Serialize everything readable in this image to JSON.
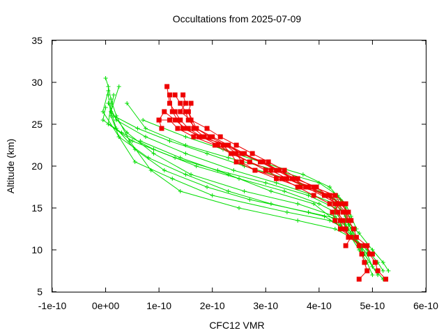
{
  "chart_data": {
    "type": "scatter",
    "title": "Occultations from 2025-07-09",
    "xlabel": "CFC12 VMR",
    "ylabel": "Altitude (km)",
    "xlim": [
      -1e-10,
      6e-10
    ],
    "ylim": [
      5,
      35
    ],
    "grid": false,
    "legend": "none",
    "x_ticks": [
      {
        "value": -1e-10,
        "label": "-1e-10"
      },
      {
        "value": 0,
        "label": "0e+00"
      },
      {
        "value": 1e-10,
        "label": "1e-10"
      },
      {
        "value": 2e-10,
        "label": "2e-10"
      },
      {
        "value": 3e-10,
        "label": "3e-10"
      },
      {
        "value": 4e-10,
        "label": "4e-10"
      },
      {
        "value": 5e-10,
        "label": "5e-10"
      },
      {
        "value": 6e-10,
        "label": "6e-10"
      }
    ],
    "y_ticks": [
      {
        "value": 5,
        "label": "5"
      },
      {
        "value": 10,
        "label": "10"
      },
      {
        "value": 15,
        "label": "15"
      },
      {
        "value": 20,
        "label": "20"
      },
      {
        "value": 25,
        "label": "25"
      },
      {
        "value": 30,
        "label": "30"
      },
      {
        "value": 35,
        "label": "35"
      }
    ],
    "series": [
      {
        "style": "line-plus",
        "color": "#00dd00",
        "x": [
          5.2e-10,
          5.1e-10,
          4.9e-10,
          4.6e-10,
          4.3e-10,
          3.6e-10,
          2.5e-10,
          1.4e-10,
          8.5e-11,
          4.5e-11,
          2e-11,
          1e-11,
          5e-12,
          0.0
        ],
        "y": [
          7.5,
          8.5,
          10,
          11.5,
          12.5,
          13.5,
          15,
          17,
          19.5,
          23,
          26,
          28,
          29.5,
          30.5
        ]
      },
      {
        "style": "line-plus",
        "color": "#00dd00",
        "x": [
          5e-10,
          4.9e-10,
          4.7e-10,
          4.5e-10,
          4.2e-10,
          3.4e-10,
          2e-10,
          1.25e-10,
          5.5e-11,
          2.5e-11,
          1e-11,
          5e-12
        ],
        "y": [
          8,
          9.5,
          11,
          12.5,
          13.5,
          14.5,
          16.5,
          18.5,
          20.5,
          23.5,
          26,
          28.5
        ]
      },
      {
        "style": "line-plus",
        "color": "#00dd00",
        "x": [
          5.3e-10,
          5.2e-10,
          5e-10,
          4.75e-10,
          4.5e-10,
          3.8e-10,
          2.7e-10,
          1.9e-10,
          1.1e-10,
          5.5e-11,
          2e-11,
          1e-11,
          1.5e-11
        ],
        "y": [
          7.5,
          8.5,
          10,
          12,
          13.5,
          14.5,
          16,
          17.5,
          19.5,
          22,
          24.5,
          26.5,
          28.5
        ]
      },
      {
        "style": "line-plus",
        "color": "#00dd00",
        "x": [
          5.1e-10,
          5e-10,
          4.85e-10,
          4.7e-10,
          4.5e-10,
          4.1e-10,
          3.1e-10,
          2.3e-10,
          1.5e-10,
          8e-11,
          2.5e-11,
          -5e-12,
          5e-12
        ],
        "y": [
          7,
          8,
          9.5,
          11,
          12.5,
          14,
          15.5,
          17,
          19,
          21,
          23.5,
          26.5,
          29
        ]
      },
      {
        "style": "line-plus",
        "color": "#00dd00",
        "x": [
          5.2e-10,
          5e-10,
          4.85e-10,
          4.7e-10,
          4.55e-10,
          4.3e-10,
          3.6e-10,
          2.6e-10,
          1.6e-10,
          9e-11,
          4e-11,
          1e-11,
          2.5e-11
        ],
        "y": [
          6.5,
          8,
          9.5,
          11,
          12.5,
          14,
          15.5,
          17,
          19,
          21.5,
          24,
          26.5,
          29.5
        ]
      },
      {
        "style": "line-plus",
        "color": "#00dd00",
        "x": [
          4.9e-10,
          4.7e-10,
          4.6e-10,
          4.5e-10,
          4.3e-10,
          3.9e-10,
          3.2e-10,
          2.4e-10,
          1.5e-10,
          7.5e-11,
          2e-11,
          5e-12
        ],
        "y": [
          9.5,
          11,
          12.5,
          14,
          15.5,
          16.5,
          18,
          19.5,
          21.5,
          23.5,
          25.5,
          27.5
        ]
      },
      {
        "style": "line-plus",
        "color": "#00dd00",
        "x": [
          4.8e-10,
          4.65e-10,
          4.5e-10,
          4.3e-10,
          4e-10,
          3.35e-10,
          2.5e-10,
          1.7e-10,
          9e-11,
          3e-11,
          -5e-12,
          0.0
        ],
        "y": [
          10,
          11.5,
          13,
          14.5,
          15.5,
          17,
          18.5,
          20,
          22,
          24,
          25.5,
          27
        ]
      },
      {
        "style": "line-plus",
        "color": "#00dd00",
        "x": [
          4.8e-10,
          4.6e-10,
          4.45e-10,
          4.3e-10,
          3.8e-10,
          3e-10,
          2.1e-10,
          1.3e-10,
          5e-11,
          5e-12,
          1e-11
        ],
        "y": [
          10.5,
          12,
          13.5,
          15,
          16.5,
          18,
          19.5,
          21,
          23,
          25,
          27.5
        ]
      },
      {
        "style": "line-plus",
        "color": "#00dd00",
        "x": [
          4.7e-10,
          4.55e-10,
          4.45e-10,
          4.3e-10,
          4e-10,
          3.4e-10,
          2.6e-10,
          1.9e-10,
          1.2e-10,
          6e-11,
          1.5e-11
        ],
        "y": [
          11.5,
          13,
          14.5,
          16,
          17,
          18.5,
          20,
          21.5,
          23,
          24.5,
          26
        ]
      },
      {
        "style": "line-plus",
        "color": "#00dd00",
        "x": [
          4.7e-10,
          4.6e-10,
          4.5e-10,
          4.35e-10,
          4e-10,
          3.2e-10,
          2.3e-10,
          1.5e-10,
          7.5e-11,
          4e-11
        ],
        "y": [
          12.5,
          14,
          15.5,
          16.5,
          18,
          19.5,
          21,
          22.5,
          24.5,
          27.5
        ]
      },
      {
        "style": "line-plus",
        "color": "#00dd00",
        "x": [
          4.6e-10,
          4.5e-10,
          4.4e-10,
          4.2e-10,
          3.7e-10,
          2.9e-10,
          2.2e-10,
          1.5e-10,
          7e-11
        ],
        "y": [
          13.5,
          15,
          16,
          17.5,
          19,
          20.5,
          22,
          23.5,
          25.5
        ]
      },
      {
        "style": "line-plus",
        "color": "#00dd00",
        "x": [
          5e-10,
          4.9e-10,
          4.75e-10,
          4.6e-10,
          4.4e-10,
          3.9e-10,
          3.1e-10,
          2.3e-10,
          1.4e-10,
          6.5e-11
        ],
        "y": [
          7,
          8.5,
          10,
          11.5,
          13,
          15.5,
          17,
          19,
          21,
          23
        ]
      },
      {
        "style": "line-square",
        "color": "#ee0000",
        "x": [
          4.75e-10,
          4.9e-10,
          4.85e-10,
          4.8e-10,
          4.75e-10,
          4.6e-10,
          4.45e-10,
          4.4e-10,
          4.35e-10,
          4.2e-10,
          3.9e-10,
          3.6e-10,
          3.3e-10,
          3e-10,
          2.7e-10,
          2.4e-10,
          2.1e-10,
          1.8e-10,
          1.55e-10,
          1.4e-10,
          1.3e-10,
          1.2e-10,
          1.15e-10
        ],
        "y": [
          6.5,
          7.5,
          8.5,
          9.5,
          10.5,
          11.5,
          12.5,
          13.5,
          14.5,
          15.5,
          16.5,
          17.5,
          18.5,
          19.5,
          20.5,
          21.5,
          22.5,
          23.5,
          24.5,
          25.5,
          26.5,
          27.5,
          29.5
        ]
      },
      {
        "style": "line-square",
        "color": "#ee0000",
        "x": [
          5.25e-10,
          5.1e-10,
          5.05e-10,
          4.95e-10,
          4.9e-10,
          4.7e-10,
          4.65e-10,
          4.55e-10,
          4.5e-10,
          4.45e-10,
          4.1e-10,
          3.8e-10,
          3.5e-10,
          3.2e-10,
          2.9e-10,
          2.6e-10,
          2.3e-10,
          2e-10,
          1.7e-10,
          1.55e-10,
          1.5e-10,
          1.4e-10,
          1.3e-10
        ],
        "y": [
          6.5,
          7.5,
          8.5,
          9.5,
          10.5,
          11.5,
          12.5,
          13.5,
          14.5,
          15.5,
          16.5,
          17.5,
          18.5,
          19.5,
          20.5,
          21.5,
          22.5,
          23.5,
          24.5,
          25.5,
          26.5,
          27.5,
          28.5
        ]
      },
      {
        "style": "line-square",
        "color": "#ee0000",
        "x": [
          5e-10,
          4.85e-10,
          4.55e-10,
          4.5e-10,
          4.45e-10,
          4.35e-10,
          4.3e-10,
          4.2e-10,
          3.8e-10,
          3.5e-10,
          3.25e-10,
          2.95e-10,
          2.55e-10,
          2.25e-10,
          1.8e-10,
          1.45e-10,
          1.35e-10,
          1.25e-10,
          1.2e-10
        ],
        "y": [
          9.5,
          10.5,
          11.5,
          12.5,
          13.5,
          14.5,
          15.5,
          16.5,
          17.5,
          18.5,
          19.5,
          20.5,
          21.5,
          22.5,
          23.5,
          24.5,
          25.5,
          26.5,
          28.5
        ]
      },
      {
        "style": "line-square",
        "color": "#ee0000",
        "x": [
          4.5e-10,
          4.6e-10,
          4.4e-10,
          4.3e-10,
          4.25e-10,
          4.4e-10,
          4.3e-10,
          3.9e-10,
          3.6e-10,
          3.35e-10,
          3.05e-10,
          2.75e-10,
          2.45e-10,
          2.15e-10,
          1.9e-10,
          1.6e-10,
          1.4e-10,
          1.5e-10,
          1.45e-10
        ],
        "y": [
          10.5,
          11.5,
          12.5,
          13.5,
          14.5,
          15.5,
          16.5,
          17.5,
          18.5,
          19.5,
          20.5,
          21.5,
          22.5,
          23.5,
          24.5,
          25.5,
          26.5,
          27.5,
          28.5
        ]
      },
      {
        "style": "line-square",
        "color": "#ee0000",
        "x": [
          4.65e-10,
          4.55e-10,
          4.45e-10,
          4.3e-10,
          4.15e-10,
          3.95e-10,
          3.55e-10,
          3.25e-10,
          2.9e-10,
          2.55e-10,
          2.3e-10,
          1.75e-10,
          1.5e-10,
          1.3e-10,
          1.1e-10,
          1e-10,
          1.05e-10
        ],
        "y": [
          12.5,
          13.5,
          14.5,
          15.5,
          16.5,
          17.5,
          18.5,
          19.5,
          20.5,
          21.5,
          22.5,
          23.5,
          24.5,
          25.5,
          26.5,
          25.5,
          24.5
        ]
      },
      {
        "style": "line-square",
        "color": "#ee0000",
        "x": [
          4.6e-10,
          4.5e-10,
          4.35e-10,
          3.75e-10,
          3.4e-10,
          3.1e-10,
          2.7e-10,
          2.35e-10,
          2.05e-10,
          1.65e-10,
          1.35e-10,
          1.2e-10,
          1e-10
        ],
        "y": [
          13.5,
          14.5,
          15.5,
          17.5,
          18.5,
          19.5,
          20.5,
          21.5,
          22.5,
          23.5,
          24.5,
          25.5,
          25.5
        ]
      },
      {
        "style": "line-square",
        "color": "#ee0000",
        "x": [
          4.55e-10,
          4.4e-10,
          4.2e-10,
          3.65e-10,
          3.2e-10,
          2.8e-10,
          2.55e-10,
          2.45e-10,
          2.25e-10,
          1.95e-10,
          1.7e-10,
          1.55e-10,
          1.6e-10
        ],
        "y": [
          14.5,
          15.5,
          16.5,
          17.5,
          18.5,
          19.5,
          20.5,
          21.5,
          22.5,
          23.5,
          24.5,
          26.5,
          27.5
        ]
      },
      {
        "style": "line-square",
        "color": "#ee0000",
        "x": [
          4.5e-10,
          4.3e-10,
          3.9e-10,
          3.35e-10,
          2.8e-10,
          2.45e-10,
          2.35e-10,
          2.2e-10,
          1.85e-10,
          1.65e-10,
          1.55e-10
        ],
        "y": [
          15.5,
          16.5,
          17.5,
          18.5,
          19.5,
          20.5,
          21.5,
          22.5,
          23.5,
          24.5,
          26.5
        ]
      }
    ]
  }
}
